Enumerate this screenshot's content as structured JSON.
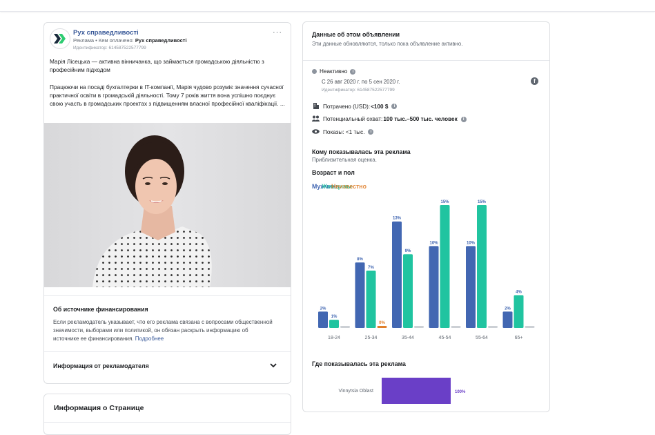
{
  "ad": {
    "page_name": "Рух справедливості",
    "sponsor_prefix": "Реклама • Кем оплачено: ",
    "sponsor_name": "Рух справедливості",
    "ad_id": "Идентификатор: 614587522577799",
    "more": "···",
    "text": "Марія Лісецька — активна вінничанка, що займається громадською діяльністю з професійним підходом\n\nПрацюючи на посаді бухгалтерки в IT-компанії, Марія чудово розуміє значення сучасної практичної освіти в громадській діяльності. Тому 7 років життя вона успішно поєднує свою участь в громадських проектах з підвищенням власної професійної кваліфікації. ...",
    "funding_title": "Об источнике финансирования",
    "funding_text": "Если рекламодатель указывает, что его реклама связана с вопросами общественной значимости, выборами или политикой, он обязан раскрыть информацию об источнике ее финансирования. ",
    "funding_link": "Подробнее",
    "advertiser_info": "Информация от рекламодателя"
  },
  "page_info": {
    "title": "Информация о Странице"
  },
  "details": {
    "title": "Данные об этом объявлении",
    "subtitle": "Эти данные обновляются, только пока объявление активно.",
    "status": "Неактивно",
    "dates": "С 26 авг 2020 г. по 5 сен 2020 г.",
    "ad_id": "Идентификатор: 614587522577799",
    "spent_label": "Потрачено (USD): ",
    "spent_value": "<100 $",
    "reach_label": "Потенциальный охват: ",
    "reach_value": "100 тыс.–500 тыс. человек",
    "impressions": "Показы: <1 тыс.",
    "who_title": "Кому показывалась эта реклама",
    "who_subtitle": "Приблизительная оценка.",
    "age_title": "Возраст и пол",
    "where_title": "Где показывалась эта реклама"
  },
  "colors": {
    "men": "#4267b2",
    "women": "#20c4a0",
    "unknown": "#e07f2a",
    "unknown_gray": "#ccd0d5",
    "region": "#6a3fc7"
  },
  "chart_data": [
    {
      "type": "bar",
      "title": "Возраст и пол",
      "categories": [
        "18-24",
        "25-34",
        "35-44",
        "45-54",
        "55-64",
        "65+"
      ],
      "series": [
        {
          "name": "Мужчины",
          "values": [
            2,
            8,
            13,
            10,
            10,
            2
          ],
          "labels": [
            "2%",
            "8%",
            "13%",
            "10%",
            "10%",
            "2%"
          ]
        },
        {
          "name": "Женщины",
          "values": [
            1,
            7,
            9,
            15,
            15,
            4
          ],
          "labels": [
            "1%",
            "7%",
            "9%",
            "15%",
            "15%",
            "4%"
          ]
        },
        {
          "name": "Неизвестно",
          "values": [
            0,
            0,
            0,
            0,
            0,
            0
          ],
          "labels": [
            "",
            "0%",
            "",
            "",
            "",
            ""
          ]
        }
      ],
      "ylim": [
        0,
        15
      ]
    },
    {
      "type": "bar",
      "title": "Где показывалась эта реклама",
      "categories": [
        "Vinnytsia Oblast"
      ],
      "values": [
        100
      ],
      "labels": [
        "100%"
      ]
    }
  ]
}
